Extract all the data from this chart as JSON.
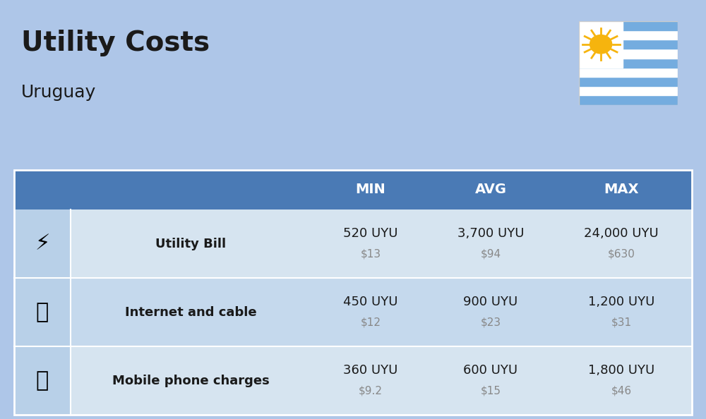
{
  "title": "Utility Costs",
  "subtitle": "Uruguay",
  "background_color": "#aec6e8",
  "header_color": "#4a7ab5",
  "header_text_color": "#ffffff",
  "row_colors": [
    "#d6e4f0",
    "#c5d9ed"
  ],
  "icon_col_color": "#b8d0e8",
  "text_color": "#1a1a1a",
  "subtext_color": "#888888",
  "headers": [
    "MIN",
    "AVG",
    "MAX"
  ],
  "rows": [
    {
      "label": "Utility Bill",
      "icon": "⚡",
      "min_uyu": "520 UYU",
      "min_usd": "$13",
      "avg_uyu": "3,700 UYU",
      "avg_usd": "$94",
      "max_uyu": "24,000 UYU",
      "max_usd": "$630"
    },
    {
      "label": "Internet and cable",
      "icon": "📡",
      "min_uyu": "450 UYU",
      "min_usd": "$12",
      "avg_uyu": "900 UYU",
      "avg_usd": "$23",
      "max_uyu": "1,200 UYU",
      "max_usd": "$31"
    },
    {
      "label": "Mobile phone charges",
      "icon": "📱",
      "min_uyu": "360 UYU",
      "min_usd": "$9.2",
      "avg_uyu": "600 UYU",
      "avg_usd": "$15",
      "max_uyu": "1,800 UYU",
      "max_usd": "$46"
    }
  ],
  "flag_colors": {
    "stripes": [
      "#74acdf",
      "#ffffff",
      "#74acdf",
      "#ffffff",
      "#74acdf",
      "#ffffff",
      "#74acdf",
      "#ffffff",
      "#74acdf"
    ],
    "sun_color": "#f6b40e"
  }
}
